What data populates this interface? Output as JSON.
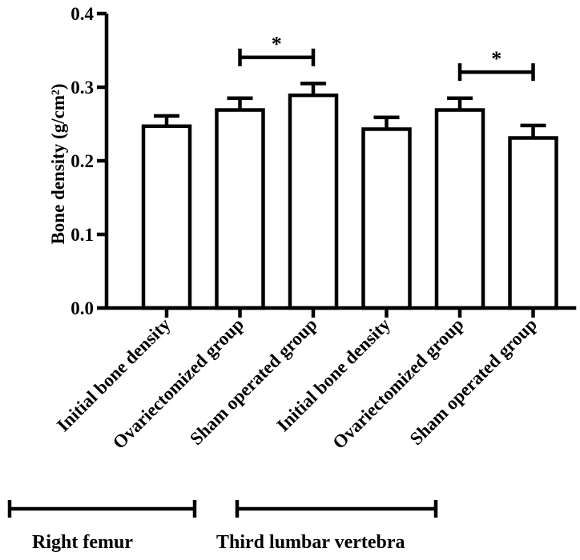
{
  "chart_data": {
    "type": "bar",
    "ylabel": "Bone density (g/cm²)",
    "ylim": [
      0,
      0.4
    ],
    "yticks": [
      "0.0",
      "0.1",
      "0.2",
      "0.3",
      "0.4"
    ],
    "grid": false,
    "categories": [
      "Initial bone density",
      "Ovariectomized group",
      "Sham operated group",
      "Initial bone density",
      "Ovariectomized group",
      "Sham operated group"
    ],
    "values": [
      0.247,
      0.269,
      0.289,
      0.243,
      0.269,
      0.231
    ],
    "error": [
      0.014,
      0.016,
      0.016,
      0.016,
      0.016,
      0.017
    ],
    "groups": [
      {
        "label": "Right femur",
        "from": 0,
        "to": 2
      },
      {
        "label": "Third lumbar vertebra",
        "from": 3,
        "to": 5
      }
    ],
    "annotations": [
      {
        "from": 1,
        "to": 2,
        "text": "*"
      },
      {
        "from": 4,
        "to": 5,
        "text": "*"
      }
    ]
  }
}
